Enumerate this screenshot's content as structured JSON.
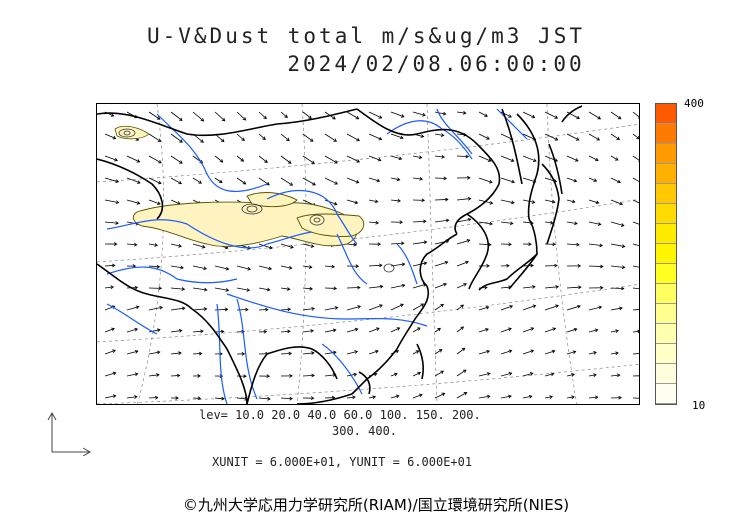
{
  "title": {
    "line1": "U-V&Dust total m/s&ug/m3 JST",
    "line2": "2024/02/08.06:00:00"
  },
  "colorbar": {
    "max_label": "400",
    "min_label": "10",
    "colors": [
      "#ff5a00",
      "#ff7a00",
      "#ff9a00",
      "#ffb000",
      "#ffc800",
      "#ffdc00",
      "#ffeb00",
      "#fff500",
      "#ffff20",
      "#ffff60",
      "#ffff90",
      "#ffffb0",
      "#ffffc8",
      "#ffffdc",
      "#fffff0"
    ]
  },
  "legend": {
    "lev_line1": "lev= 10.0 20.0 40.0 60.0 100. 150. 200.",
    "lev_line2": "300. 400."
  },
  "units": "XUNIT = 6.000E+01, YUNIT = 6.000E+01",
  "credit": "©九州大学応用力学研究所(RIAM)/国立環境研究所(NIES)",
  "map_colors": {
    "coast": "#000000",
    "river": "#1a5cff",
    "grid": "#888888",
    "arrow": "#000000",
    "dust_fill": "#fff4c0",
    "dust_line": "#555500"
  }
}
